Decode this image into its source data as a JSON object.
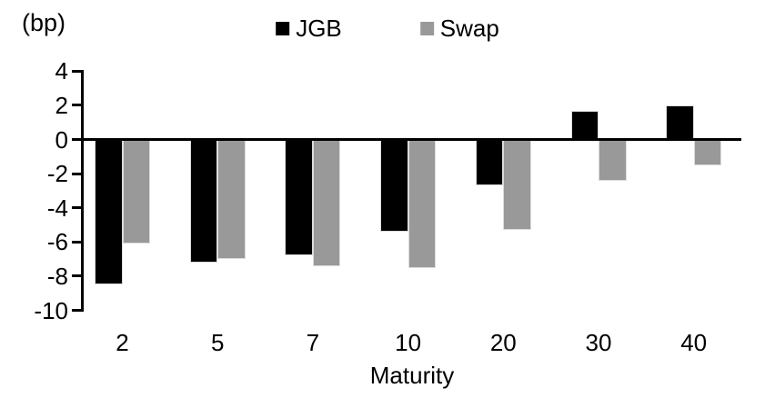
{
  "chart_data": {
    "type": "bar",
    "title": "",
    "categories": [
      "2",
      "5",
      "7",
      "10",
      "20",
      "30",
      "40"
    ],
    "series": [
      {
        "name": "JGB",
        "color": "#000000",
        "values": [
          -8.5,
          -7.2,
          -6.8,
          -5.4,
          -2.7,
          1.7,
          2.0
        ]
      },
      {
        "name": "Swap",
        "color": "#999999",
        "values": [
          -6.1,
          -7.0,
          -7.4,
          -7.5,
          -5.3,
          -2.4,
          -1.5
        ]
      }
    ],
    "xlabel": "Maturity",
    "ylabel": "(bp)",
    "yticks": [
      4,
      2,
      0,
      -2,
      -4,
      -6,
      -8,
      -10
    ],
    "ylim": [
      -10,
      4
    ],
    "legend_position": "top-center",
    "grid": false,
    "baseline_at_zero": true
  }
}
